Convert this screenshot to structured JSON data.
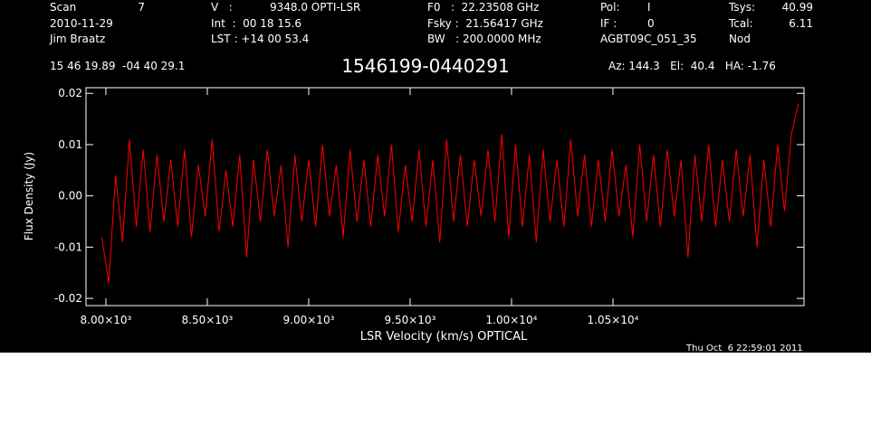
{
  "chart_data": {
    "type": "line",
    "title": "1546199-0440291",
    "xlabel": "LSR Velocity (km/s) OPTICAL",
    "ylabel": "Flux Density (Jy)",
    "annotations": [
      "Scan",
      "7",
      "V   :",
      "9348.0 OPTI-LSR",
      "F0   :  22.23508 GHz",
      "Pol:",
      "I",
      "Tsys:",
      "40.99",
      "2010-11-29",
      "Int  :  00 18 15.6",
      "Fsky :  21.56417 GHz",
      "IF :",
      "0",
      "Tcal:",
      "6.11",
      "Jim Braatz",
      "LST : +14 00 53.4",
      "BW   : 200.0000 MHz",
      "AGBT09C_051_35",
      "Nod",
      "15 46 19.89  -04 40 29.1",
      "Az: 144.3   El:  40.4   HA: -1.76",
      "Thu Oct  6 22:59:01 2011"
    ],
    "xlim": [
      7902,
      11442
    ],
    "ylim": [
      -0.0214,
      0.0211
    ],
    "xticks": [
      {
        "value": 8000,
        "label": "8.00×10³"
      },
      {
        "value": 8500,
        "label": "8.50×10³"
      },
      {
        "value": 9000,
        "label": "9.00×10³"
      },
      {
        "value": 9500,
        "label": "9.50×10³"
      },
      {
        "value": 10000,
        "label": "1.00×10⁴"
      },
      {
        "value": 10500,
        "label": "1.05×10⁴"
      }
    ],
    "yticks": [
      0.02,
      0.01,
      {
        "value": 0,
        "label": "0.00"
      },
      -0.01,
      -0.02
    ],
    "x": [
      7980,
      8014,
      8048,
      8082,
      8116,
      8150,
      8184,
      8218,
      8252,
      8286,
      8320,
      8354,
      8388,
      8422,
      8456,
      8490,
      8524,
      8558,
      8592,
      8626,
      8660,
      8694,
      8728,
      8762,
      8796,
      8830,
      8864,
      8898,
      8932,
      8966,
      9000,
      9034,
      9068,
      9102,
      9136,
      9170,
      9204,
      9238,
      9272,
      9306,
      9340,
      9374,
      9408,
      9442,
      9476,
      9510,
      9544,
      9578,
      9612,
      9646,
      9680,
      9714,
      9748,
      9782,
      9816,
      9850,
      9884,
      9918,
      9952,
      9986,
      10020,
      10054,
      10088,
      10122,
      10156,
      10190,
      10224,
      10258,
      10292,
      10326,
      10360,
      10394,
      10428,
      10462,
      10496,
      10530,
      10564,
      10598,
      10632,
      10666,
      10700,
      10734,
      10768,
      10802,
      10836,
      10870,
      10904,
      10938,
      10972,
      11006,
      11040,
      11074,
      11108,
      11142,
      11176,
      11210,
      11244,
      11278,
      11312,
      11346,
      11380,
      11414
    ],
    "series": [
      {
        "color": "#ff0000",
        "values": [
          -0.008,
          -0.017,
          0.004,
          -0.009,
          0.011,
          -0.006,
          0.009,
          -0.007,
          0.008,
          -0.005,
          0.007,
          -0.006,
          0.009,
          -0.008,
          0.006,
          -0.004,
          0.011,
          -0.007,
          0.005,
          -0.006,
          0.008,
          -0.012,
          0.007,
          -0.005,
          0.009,
          -0.004,
          0.006,
          -0.01,
          0.008,
          -0.005,
          0.007,
          -0.006,
          0.01,
          -0.004,
          0.006,
          -0.008,
          0.009,
          -0.005,
          0.007,
          -0.006,
          0.008,
          -0.004,
          0.01,
          -0.007,
          0.006,
          -0.005,
          0.009,
          -0.006,
          0.007,
          -0.009,
          0.011,
          -0.005,
          0.008,
          -0.006,
          0.007,
          -0.004,
          0.009,
          -0.005,
          0.012,
          -0.008,
          0.01,
          -0.006,
          0.008,
          -0.009,
          0.009,
          -0.005,
          0.007,
          -0.006,
          0.011,
          -0.004,
          0.008,
          -0.006,
          0.007,
          -0.005,
          0.009,
          -0.004,
          0.006,
          -0.008,
          0.01,
          -0.005,
          0.008,
          -0.006,
          0.009,
          -0.004,
          0.007,
          -0.012,
          0.008,
          -0.005,
          0.01,
          -0.006,
          0.007,
          -0.005,
          0.009,
          -0.004,
          0.008,
          -0.01,
          0.007,
          -0.006,
          0.01,
          -0.003,
          0.012,
          0.018
        ]
      }
    ]
  }
}
